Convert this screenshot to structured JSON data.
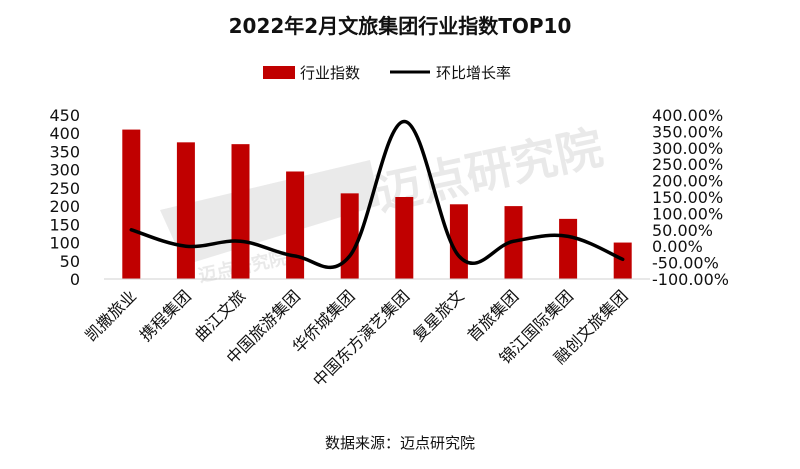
{
  "chart_data": {
    "type": "bar",
    "title": "2022年2月文旅集团行业指数TOP10",
    "categories": [
      "凯撒旅业",
      "携程集团",
      "曲江文旅",
      "中国旅游集团",
      "华侨城集团",
      "中国东方演艺集团",
      "复星旅文",
      "首旅集团",
      "锦江国际集团",
      "融创文旅集团"
    ],
    "series": [
      {
        "name": "行业指数",
        "type": "bar",
        "axis": "left",
        "color": "#c00000",
        "values": [
          410,
          375,
          370,
          295,
          235,
          225,
          205,
          200,
          165,
          100
        ]
      },
      {
        "name": "环比增长率",
        "type": "line",
        "axis": "right",
        "color": "#000000",
        "values": [
          0.5,
          0.0,
          0.15,
          -0.3,
          -0.3,
          3.8,
          -0.3,
          0.15,
          0.3,
          -0.4
        ]
      }
    ],
    "y_left": {
      "min": 0,
      "max": 450,
      "ticks": [
        "0",
        "50",
        "100",
        "150",
        "200",
        "250",
        "300",
        "350",
        "400",
        "450"
      ]
    },
    "y_right": {
      "min": -1.0,
      "max": 4.0,
      "ticks": [
        "-100.00%",
        "-50.00%",
        "0.00%",
        "50.00%",
        "100.00%",
        "150.00%",
        "200.00%",
        "250.00%",
        "300.00%",
        "350.00%",
        "400.00%"
      ]
    },
    "legend_position": "top",
    "grid": false
  },
  "source": "数据来源：迈点研究院",
  "watermark_text": "迈点研究院"
}
